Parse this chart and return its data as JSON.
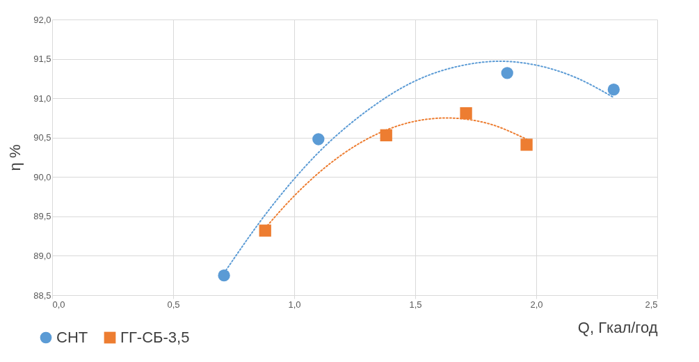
{
  "chart_data": {
    "type": "scatter",
    "xlabel": "Q, Гкал/год",
    "ylabel": "η %",
    "xlim": [
      0,
      2.5
    ],
    "xticks": [
      {
        "value": 0,
        "label": "0,0"
      },
      {
        "value": 0.5,
        "label": "0,5"
      },
      {
        "value": 1,
        "label": "1,0"
      },
      {
        "value": 1.5,
        "label": "1,5"
      },
      {
        "value": 2,
        "label": "2,0"
      },
      {
        "value": 2.5,
        "label": "2,5"
      }
    ],
    "ylim": [
      88.5,
      92
    ],
    "yticks": [
      {
        "value": 88.5,
        "label": "88,5"
      },
      {
        "value": 89,
        "label": "89,0"
      },
      {
        "value": 89.5,
        "label": "89,5"
      },
      {
        "value": 90,
        "label": "90,0"
      },
      {
        "value": 90.5,
        "label": "90,5"
      },
      {
        "value": 91,
        "label": "91,0"
      },
      {
        "value": 91.5,
        "label": "91,5"
      },
      {
        "value": 92,
        "label": "92,0"
      }
    ],
    "grid": true,
    "legend": "bottom left",
    "series": [
      {
        "name": "СНТ",
        "color": "#5b9bd5",
        "marker": "circle",
        "x": [
          0.71,
          1.1,
          1.88,
          2.32
        ],
        "values": [
          88.75,
          90.48,
          91.32,
          91.11
        ]
      },
      {
        "name": "ГГ-СБ-3,5",
        "color": "#ed7d31",
        "marker": "square",
        "x": [
          0.88,
          1.38,
          1.71,
          1.96
        ],
        "values": [
          89.32,
          90.53,
          90.81,
          90.41
        ]
      },
      {
        "type": "line",
        "color": "#5b9bd5",
        "line_style": "dotted",
        "marker": "none",
        "x": [
          0.71,
          0.9,
          1.1,
          1.3,
          1.5,
          1.7,
          1.85,
          2.0,
          2.15,
          2.32
        ],
        "values": [
          88.78,
          89.6,
          90.31,
          90.84,
          91.22,
          91.42,
          91.47,
          91.42,
          91.28,
          91.01
        ]
      },
      {
        "type": "line",
        "color": "#ed7d31",
        "line_style": "dotted",
        "marker": "none",
        "x": [
          0.88,
          1.0,
          1.2,
          1.4,
          1.63,
          1.8,
          1.96
        ],
        "values": [
          89.35,
          89.76,
          90.29,
          90.62,
          90.75,
          90.68,
          90.48
        ]
      }
    ]
  }
}
